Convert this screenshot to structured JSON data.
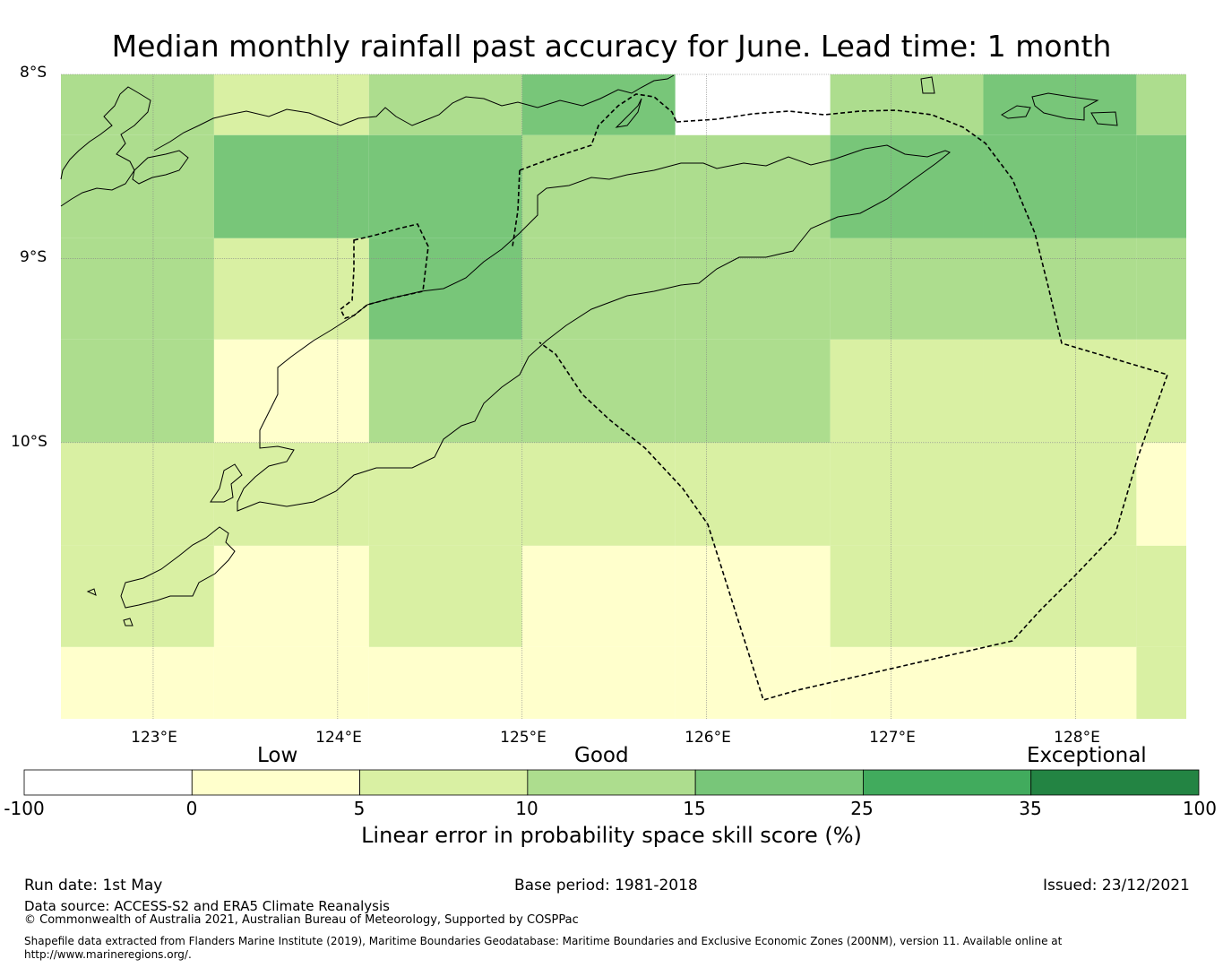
{
  "title": "Median monthly rainfall past accuracy for June. Lead time: 1 month",
  "map": {
    "lat_labels": [
      "8°S",
      "9°S",
      "10°S"
    ],
    "lon_labels": [
      "123°E",
      "124°E",
      "125°E",
      "126°E",
      "127°E",
      "128°E"
    ],
    "lon_values": [
      123,
      124,
      125,
      126,
      127,
      128
    ],
    "lat_values": [
      -8,
      -9,
      -10
    ],
    "grid_lon_edges": [
      122.5,
      123.33,
      124.17,
      125.0,
      125.83,
      126.67,
      127.5,
      128.33,
      128.6
    ],
    "grid_lat_edges": [
      -8.0,
      -8.33,
      -8.89,
      -9.44,
      -10.0,
      -10.56,
      -11.11,
      -11.5
    ],
    "skill_grid": [
      [
        12,
        7,
        12,
        18,
        null,
        12,
        18,
        12
      ],
      [
        12,
        18,
        18,
        12,
        12,
        18,
        18,
        18
      ],
      [
        12,
        7,
        18,
        12,
        12,
        12,
        12,
        12
      ],
      [
        12,
        2,
        12,
        12,
        12,
        7,
        7,
        7
      ],
      [
        7,
        7,
        7,
        7,
        7,
        7,
        7,
        2
      ],
      [
        7,
        2,
        7,
        2,
        2,
        7,
        7,
        7
      ],
      [
        2,
        2,
        2,
        2,
        2,
        2,
        2,
        7
      ]
    ]
  },
  "colorbar": {
    "category_labels": [
      "Low",
      "Good",
      "Exceptional"
    ],
    "tick_labels": [
      "-100",
      "0",
      "5",
      "10",
      "15",
      "25",
      "35",
      "100"
    ],
    "colors": [
      "#ffffff",
      "#ffffcc",
      "#d9f0a3",
      "#addd8e",
      "#78c679",
      "#41ab5d",
      "#238443"
    ],
    "label": "Linear error in probability space skill score (%)"
  },
  "footer": {
    "run_date": "Run date: 1st May",
    "base_period": "Base period: 1981-2018",
    "issued": "Issued: 23/12/2021",
    "data_source": "Data source: ACCESS-S2 and ERA5 Climate Reanalysis",
    "copyright": "© Commonwealth of Australia 2021, Australian Bureau of Meteorology, Supported by COSPPac",
    "shapefile_line1": "Shapefile data extracted from Flanders Marine Institute (2019), Maritime Boundaries Geodatabase: Maritime Boundaries and Exclusive Economic Zones (200NM), version 11. Available online at",
    "shapefile_line2": "http://www.marineregions.org/."
  }
}
